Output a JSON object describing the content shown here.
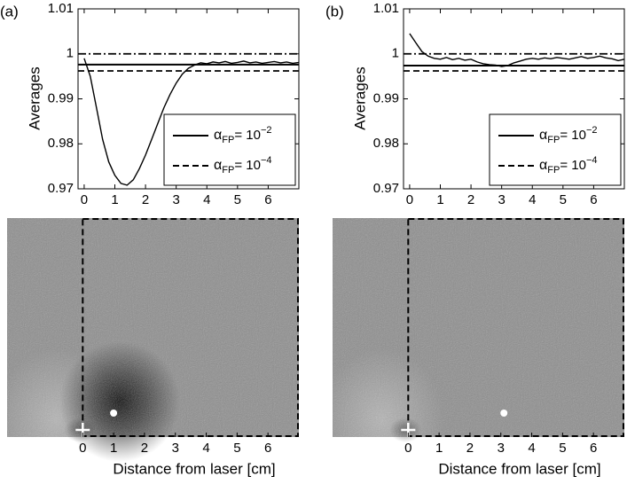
{
  "chart_data": [
    {
      "type": "line",
      "panel_label": "(a)",
      "ylabel": "Averages",
      "xlim": [
        -0.2,
        7
      ],
      "ylim": [
        0.97,
        1.01
      ],
      "xticks": [
        0,
        1,
        2,
        3,
        4,
        5,
        6
      ],
      "yticks": [
        0.97,
        0.98,
        0.99,
        1,
        1.01
      ],
      "x": [
        0,
        0.2,
        0.4,
        0.6,
        0.8,
        1.0,
        1.2,
        1.4,
        1.6,
        1.8,
        2.0,
        2.2,
        2.4,
        2.6,
        2.8,
        3.0,
        3.2,
        3.4,
        3.6,
        3.8,
        4.0,
        4.2,
        4.4,
        4.6,
        4.8,
        5.0,
        5.2,
        5.4,
        5.6,
        5.8,
        6.0,
        6.2,
        6.4,
        6.6,
        6.8,
        7.0
      ],
      "series": [
        {
          "color": "#000000",
          "values": [
            0.999,
            0.995,
            0.988,
            0.981,
            0.976,
            0.973,
            0.9712,
            0.9708,
            0.972,
            0.9745,
            0.9775,
            0.981,
            0.9845,
            0.988,
            0.991,
            0.9935,
            0.9955,
            0.9968,
            0.9975,
            0.998,
            0.9978,
            0.9982,
            0.998,
            0.9983,
            0.9979,
            0.9981,
            0.9984,
            0.998,
            0.9982,
            0.9979,
            0.9981,
            0.9983,
            0.998,
            0.9982,
            0.9979,
            0.9981
          ]
        }
      ],
      "reference_lines": [
        {
          "value": 0.9976,
          "style": "solid",
          "name": {
            "base": "α",
            "sub": "FP",
            "mid": "= 10",
            "sup": "−2"
          }
        },
        {
          "value": 0.9962,
          "style": "dashed",
          "name": {
            "base": "α",
            "sub": "FP",
            "mid": "= 10",
            "sup": "−4"
          }
        },
        {
          "value": 1,
          "style": "dashdot"
        }
      ],
      "legend_position": "lower right",
      "image": {
        "xlim": [
          -2.45,
          7
        ],
        "xticks": [
          0,
          1,
          2,
          3,
          4,
          5,
          6
        ],
        "xlabel": "Distance from laser [cm]",
        "region_x": [
          0,
          7
        ],
        "source_x": 0,
        "marker_x": 1.0,
        "blob_x": 1.2
      }
    },
    {
      "type": "line",
      "panel_label": "(b)",
      "ylabel": "Averages",
      "xlim": [
        -0.2,
        7
      ],
      "ylim": [
        0.97,
        1.01
      ],
      "xticks": [
        0,
        1,
        2,
        3,
        4,
        5,
        6
      ],
      "yticks": [
        0.97,
        0.98,
        0.99,
        1,
        1.01
      ],
      "x": [
        0,
        0.2,
        0.4,
        0.6,
        0.8,
        1.0,
        1.2,
        1.4,
        1.6,
        1.8,
        2.0,
        2.2,
        2.4,
        2.6,
        2.8,
        3.0,
        3.2,
        3.4,
        3.6,
        3.8,
        4.0,
        4.2,
        4.4,
        4.6,
        4.8,
        5.0,
        5.2,
        5.4,
        5.6,
        5.8,
        6.0,
        6.2,
        6.4,
        6.6,
        6.8,
        7.0
      ],
      "series": [
        {
          "color": "#000000",
          "values": [
            1.0045,
            1.0025,
            1.0005,
            0.9995,
            0.999,
            0.9988,
            0.9992,
            0.9987,
            0.999,
            0.9986,
            0.9988,
            0.9982,
            0.9978,
            0.9976,
            0.9975,
            0.9972,
            0.9974,
            0.998,
            0.9984,
            0.9988,
            0.999,
            0.9988,
            0.9991,
            0.9989,
            0.9992,
            0.999,
            0.9988,
            0.9991,
            0.9994,
            0.999,
            0.9992,
            0.9995,
            0.9991,
            0.9989,
            0.9985,
            0.9988
          ]
        }
      ],
      "reference_lines": [
        {
          "value": 0.9974,
          "style": "solid",
          "name": {
            "base": "α",
            "sub": "FP",
            "mid": "= 10",
            "sup": "−2"
          }
        },
        {
          "value": 0.9962,
          "style": "dashed",
          "name": {
            "base": "α",
            "sub": "FP",
            "mid": "= 10",
            "sup": "−4"
          }
        },
        {
          "value": 1,
          "style": "dashdot"
        }
      ],
      "legend_position": "lower right",
      "image": {
        "xlim": [
          -2.45,
          7
        ],
        "xticks": [
          0,
          1,
          2,
          3,
          4,
          5,
          6
        ],
        "xlabel": "Distance from laser [cm]",
        "region_x": [
          0,
          7
        ],
        "source_x": 0,
        "marker_x": 3.1
      }
    }
  ]
}
